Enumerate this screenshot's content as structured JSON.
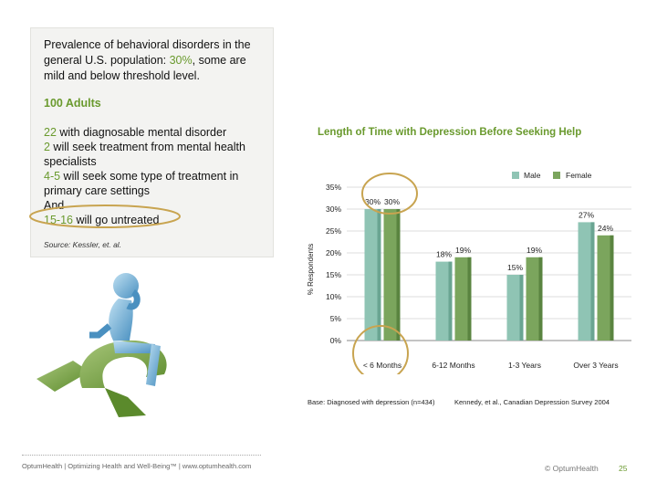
{
  "panel": {
    "intro_before": "Prevalence of behavioral disorders in the general U.S. population: ",
    "intro_highlight": "30%",
    "intro_after": ", some are mild and below threshold level.",
    "adults": "100 Adults",
    "facts": [
      {
        "num": "22",
        "text": " with diagnosable mental disorder"
      },
      {
        "num": "2",
        "text": " will seek treatment from mental health specialists"
      },
      {
        "num": "4-5",
        "text": " will seek some type of treatment in primary care settings"
      },
      {
        "num": "",
        "text": "And"
      },
      {
        "num": "15-16",
        "text": " will go untreated"
      }
    ],
    "source": "Source: Kessler, et. al."
  },
  "chart_data": {
    "type": "bar",
    "title": "Length of Time with Depression Before Seeking Help",
    "ylabel": "% Respondents",
    "xlabel": "",
    "categories": [
      "< 6 Months",
      "6-12 Months",
      "1-3 Years",
      "Over 3 Years"
    ],
    "series": [
      {
        "name": "Male",
        "values": [
          30,
          18,
          15,
          27
        ]
      },
      {
        "name": "Female",
        "values": [
          30,
          19,
          19,
          24
        ]
      }
    ],
    "data_labels": [
      [
        "30%",
        "18%",
        "15%",
        "27%"
      ],
      [
        "30%",
        "19%",
        "19%",
        "24%"
      ]
    ],
    "ylim": [
      0,
      35
    ],
    "yticks": [
      "0%",
      "5%",
      "10%",
      "15%",
      "20%",
      "25%",
      "30%",
      "35%"
    ],
    "legend_position": "top-right",
    "colors": {
      "male": "#8fc4b4",
      "female": "#7ba55d"
    }
  },
  "footnotes": {
    "base": "Base: Diagnosed with depression (n=434)",
    "citation": "Kennedy, et al., Canadian Depression Survey 2004"
  },
  "footer": {
    "left": "OptumHealth | Optimizing Health and Well-Being™ | www.optumhealth.com",
    "right": "© OptumHealth",
    "page": "25"
  },
  "colors": {
    "accent": "#6a9a2e",
    "circle": "#c8a450"
  }
}
